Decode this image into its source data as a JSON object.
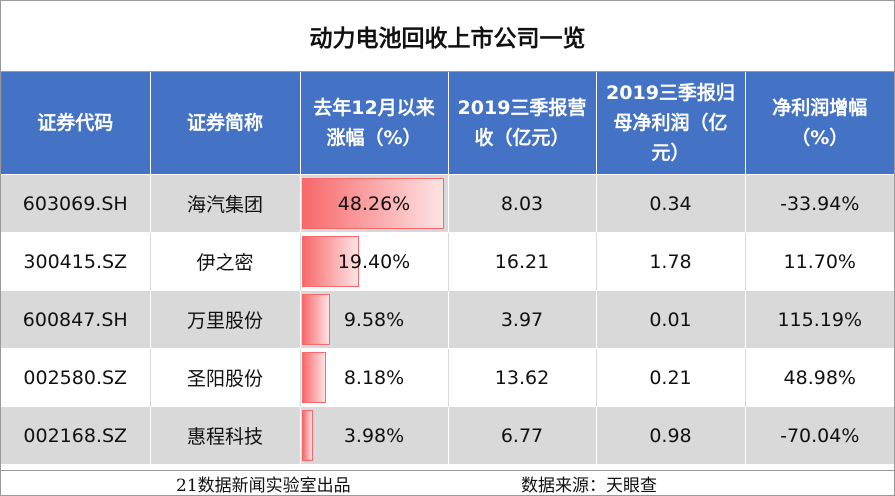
{
  "title": "动力电池回收上市公司一览",
  "headers": [
    "证券代码",
    "证券简称",
    "去年12月以来涨幅（%）",
    "2019三季报营收（亿元）",
    "2019三季报归母净利润（亿元）",
    "净利润增幅（%）"
  ],
  "rows": [
    {
      "code": "603069.SH",
      "name": "海汽集团",
      "gain": "48.26%",
      "gain_value": 48.26,
      "revenue": "8.03",
      "profit": "0.34",
      "growth": "-33.94%"
    },
    {
      "code": "300415.SZ",
      "name": "伊之密",
      "gain": "19.40%",
      "gain_value": 19.4,
      "revenue": "16.21",
      "profit": "1.78",
      "growth": "11.70%"
    },
    {
      "code": "600847.SH",
      "name": "万里股份",
      "gain": "9.58%",
      "gain_value": 9.58,
      "revenue": "3.97",
      "profit": "0.01",
      "growth": "115.19%"
    },
    {
      "code": "002580.SZ",
      "name": "圣阳股份",
      "gain": "8.18%",
      "gain_value": 8.18,
      "revenue": "13.62",
      "profit": "0.21",
      "growth": "48.98%"
    },
    {
      "code": "002168.SZ",
      "name": "惠程科技",
      "gain": "3.98%",
      "gain_value": 3.98,
      "revenue": "6.77",
      "profit": "0.98",
      "growth": "-70.04%"
    }
  ],
  "footer": {
    "credit": "21数据新闻实验室出品",
    "source": "数据来源：天眼查"
  },
  "colors": {
    "header_bg": "#4472c4",
    "band_gray": "#d9d9d9",
    "bar_red": "#f8696b"
  }
}
